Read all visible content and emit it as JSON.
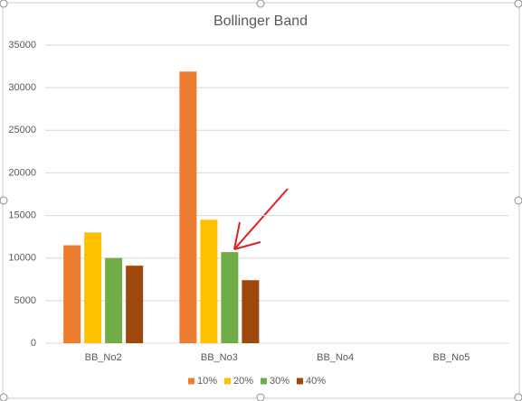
{
  "chart_data": {
    "type": "bar",
    "title": "Bollinger Band",
    "categories": [
      "BB_No2",
      "BB_No3",
      "BB_No4",
      "BB_No5"
    ],
    "series": [
      {
        "name": "10%",
        "color": "#ed7d31",
        "values": [
          11500,
          31900,
          null,
          null
        ]
      },
      {
        "name": "20%",
        "color": "#ffc000",
        "values": [
          13000,
          14500,
          null,
          null
        ]
      },
      {
        "name": "30%",
        "color": "#70ad47",
        "values": [
          10000,
          10700,
          null,
          null
        ]
      },
      {
        "name": "40%",
        "color": "#9e480e",
        "values": [
          9100,
          7400,
          null,
          null
        ]
      }
    ],
    "ylim": [
      0,
      35000
    ],
    "yticks": [
      0,
      5000,
      10000,
      15000,
      20000,
      25000,
      30000,
      35000
    ],
    "grid": true,
    "legend": "bottom"
  }
}
